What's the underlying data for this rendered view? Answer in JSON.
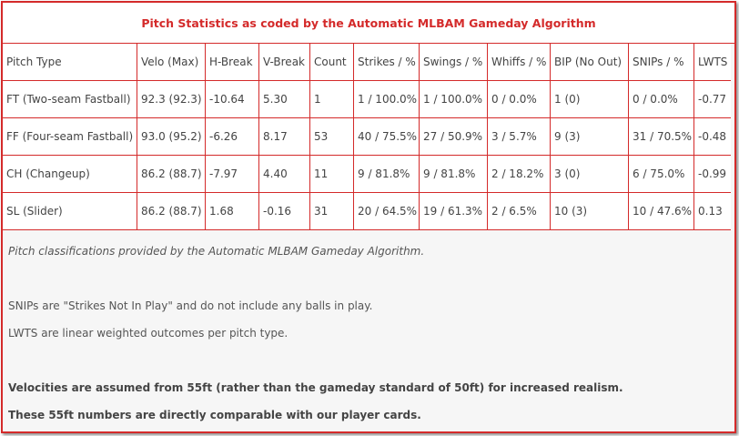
{
  "title": "Pitch Statistics as coded by the Automatic MLBAM Gameday Algorithm",
  "table": {
    "headers": [
      "Pitch Type",
      "Velo (Max)",
      "H-Break",
      "V-Break",
      "Count",
      "Strikes / %",
      "Swings / %",
      "Whiffs / %",
      "BIP (No Out)",
      "SNIPs / %",
      "LWTS"
    ],
    "rows": [
      [
        "FT (Two-seam Fastball)",
        "92.3 (92.3)",
        "-10.64",
        "5.30",
        "1",
        "1 / 100.0%",
        "1 / 100.0%",
        "0 / 0.0%",
        "1 (0)",
        "0 / 0.0%",
        "-0.77"
      ],
      [
        "FF (Four-seam Fastball)",
        "93.0 (95.2)",
        "-6.26",
        "8.17",
        "53",
        "40 / 75.5%",
        "27 / 50.9%",
        "3 / 5.7%",
        "9 (3)",
        "31 / 70.5%",
        "-0.48"
      ],
      [
        "CH (Changeup)",
        "86.2 (88.7)",
        "-7.97",
        "4.40",
        "11",
        "9 / 81.8%",
        "9 / 81.8%",
        "2 / 18.2%",
        "3 (0)",
        "6 / 75.0%",
        "-0.99"
      ],
      [
        "SL (Slider)",
        "86.2 (88.7)",
        "1.68",
        "-0.16",
        "31",
        "20 / 64.5%",
        "19 / 61.3%",
        "2 / 6.5%",
        "10 (3)",
        "10 / 47.6%",
        "0.13"
      ]
    ]
  },
  "notes": {
    "source": "Pitch classifications provided by the Automatic MLBAM Gameday Algorithm.",
    "definitions": [
      "SNIPs are \"Strikes Not In Play\" and do not include any balls in play.",
      "LWTS are linear weighted outcomes per pitch type."
    ],
    "emphasis": [
      "Velocities are assumed from 55ft (rather than the gameday standard of 50ft) for increased realism.",
      "These 55ft numbers are directly comparable with our player cards."
    ]
  }
}
